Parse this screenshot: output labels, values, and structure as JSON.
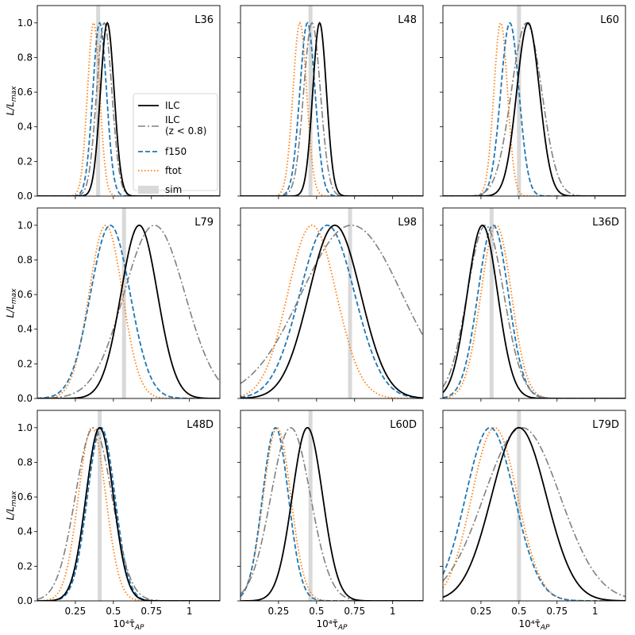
{
  "chart_data": {
    "type": "line",
    "layout": "3x3 grid of panels",
    "xlabel": "10⁴τ̄",
    "xlabel_subscript": "AP",
    "ylabel": "L/L",
    "ylabel_subscript": "max",
    "xlim": [
      0,
      1.2
    ],
    "ylim": [
      0,
      1.1
    ],
    "xticks": [
      0.25,
      0.5,
      0.75,
      1
    ],
    "xtick_labels": [
      "0.25",
      "0.5",
      "0.75",
      "1"
    ],
    "yticks": [
      0,
      0.2,
      0.4,
      0.6,
      0.8,
      1.0
    ],
    "ytick_labels": [
      "0.0",
      "0.2",
      "0.4",
      "0.6",
      "0.8",
      "1.0"
    ],
    "legend": {
      "location": "in first panel, center",
      "entries": [
        {
          "key": "ilc",
          "line1": "ILC",
          "line2": ""
        },
        {
          "key": "ilc_z",
          "line1": "ILC",
          "line2": "(z < 0.8)"
        },
        {
          "key": "f150",
          "line1": "f150",
          "line2": ""
        },
        {
          "key": "ftot",
          "line1": "ftot",
          "line2": ""
        },
        {
          "key": "sim",
          "line1": "sim",
          "line2": ""
        }
      ]
    },
    "series_styles": {
      "ilc": {
        "color": "#000000",
        "dash": "",
        "width": 1.8
      },
      "ilc_z": {
        "color": "#808080",
        "dash": "9 3 2 3",
        "width": 1.6
      },
      "f150": {
        "color": "#1f77b4",
        "dash": "6 3",
        "width": 1.8
      },
      "ftot": {
        "color": "#ff7f0e",
        "dash": "1.5 2.5",
        "width": 1.8
      },
      "sim": {
        "color": "#d9d9d9"
      }
    },
    "series_note": "each curve is a normalized peak: value 1.0 at the peak location, Gaussian-like width",
    "panels": [
      {
        "label": "L36",
        "sim": 0.4,
        "show_x_ticks": false,
        "curves": {
          "ilc": {
            "peak": 0.46,
            "width": 0.045
          },
          "ilc_z": {
            "peak": 0.44,
            "width": 0.05
          },
          "f150": {
            "peak": 0.41,
            "width": 0.045
          },
          "ftot": {
            "peak": 0.37,
            "width": 0.04
          }
        }
      },
      {
        "label": "L48",
        "sim": 0.46,
        "show_x_ticks": false,
        "curves": {
          "ilc": {
            "peak": 0.52,
            "width": 0.045
          },
          "ilc_z": {
            "peak": 0.47,
            "width": 0.055
          },
          "f150": {
            "peak": 0.44,
            "width": 0.05
          },
          "ftot": {
            "peak": 0.39,
            "width": 0.045
          }
        }
      },
      {
        "label": "L60",
        "sim": 0.5,
        "show_x_ticks": false,
        "curves": {
          "ilc": {
            "peak": 0.56,
            "width": 0.075
          },
          "ilc_z": {
            "peak": 0.55,
            "width": 0.1
          },
          "f150": {
            "peak": 0.44,
            "width": 0.06
          },
          "ftot": {
            "peak": 0.38,
            "width": 0.045
          }
        }
      },
      {
        "label": "L79",
        "sim": 0.57,
        "show_x_ticks": false,
        "curves": {
          "ilc": {
            "peak": 0.67,
            "width": 0.12
          },
          "ilc_z": {
            "peak": 0.77,
            "width": 0.2
          },
          "f150": {
            "peak": 0.48,
            "width": 0.13
          },
          "ftot": {
            "peak": 0.45,
            "width": 0.11
          }
        }
      },
      {
        "label": "L98",
        "sim": 0.72,
        "show_x_ticks": false,
        "curves": {
          "ilc": {
            "peak": 0.62,
            "width": 0.17
          },
          "ilc_z": {
            "peak": 0.73,
            "width": 0.33
          },
          "f150": {
            "peak": 0.57,
            "width": 0.18
          },
          "ftot": {
            "peak": 0.47,
            "width": 0.16
          }
        }
      },
      {
        "label": "L36D",
        "sim": 0.32,
        "show_x_ticks": false,
        "curves": {
          "ilc": {
            "peak": 0.26,
            "width": 0.1
          },
          "ilc_z": {
            "peak": 0.28,
            "width": 0.12
          },
          "f150": {
            "peak": 0.33,
            "width": 0.1
          },
          "ftot": {
            "peak": 0.35,
            "width": 0.1
          }
        }
      },
      {
        "label": "L48D",
        "sim": 0.41,
        "show_x_ticks": true,
        "curves": {
          "ilc": {
            "peak": 0.41,
            "width": 0.09
          },
          "ilc_z": {
            "peak": 0.37,
            "width": 0.12
          },
          "f150": {
            "peak": 0.42,
            "width": 0.09
          },
          "ftot": {
            "peak": 0.36,
            "width": 0.09
          }
        }
      },
      {
        "label": "L60D",
        "sim": 0.46,
        "show_x_ticks": true,
        "curves": {
          "ilc": {
            "peak": 0.44,
            "width": 0.1
          },
          "ilc_z": {
            "peak": 0.33,
            "width": 0.13
          },
          "f150": {
            "peak": 0.23,
            "width": 0.085
          },
          "ftot": {
            "peak": 0.24,
            "width": 0.09
          }
        }
      },
      {
        "label": "L79D",
        "sim": 0.5,
        "show_x_ticks": true,
        "curves": {
          "ilc": {
            "peak": 0.5,
            "width": 0.18
          },
          "ilc_z": {
            "peak": 0.52,
            "width": 0.25
          },
          "f150": {
            "peak": 0.31,
            "width": 0.16
          },
          "ftot": {
            "peak": 0.34,
            "width": 0.15
          }
        }
      }
    ]
  }
}
